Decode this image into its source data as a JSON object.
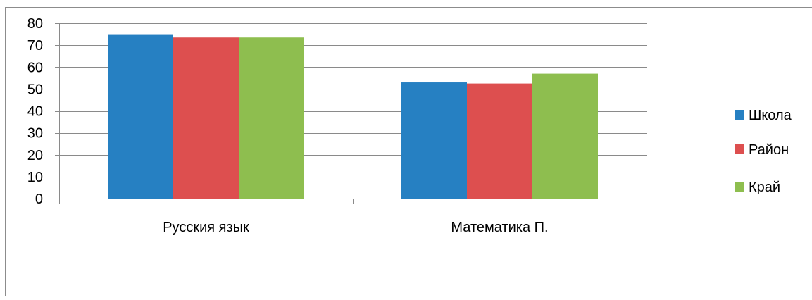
{
  "chart_data": {
    "type": "bar",
    "categories": [
      "Русския язык",
      "Математика П."
    ],
    "series": [
      {
        "name": "Школа",
        "values": [
          75,
          53
        ],
        "color": "#2680C2"
      },
      {
        "name": "Район",
        "values": [
          73.5,
          52.5
        ],
        "color": "#DD4F4F"
      },
      {
        "name": "Край",
        "values": [
          73.5,
          57
        ],
        "color": "#8EBE4F"
      }
    ],
    "title": "",
    "xlabel": "",
    "ylabel": "",
    "ylim": [
      0,
      80
    ],
    "yticks": [
      "0",
      "10",
      "20",
      "30",
      "40",
      "50",
      "60",
      "70",
      "80"
    ],
    "grid": true,
    "legend_position": "right"
  }
}
